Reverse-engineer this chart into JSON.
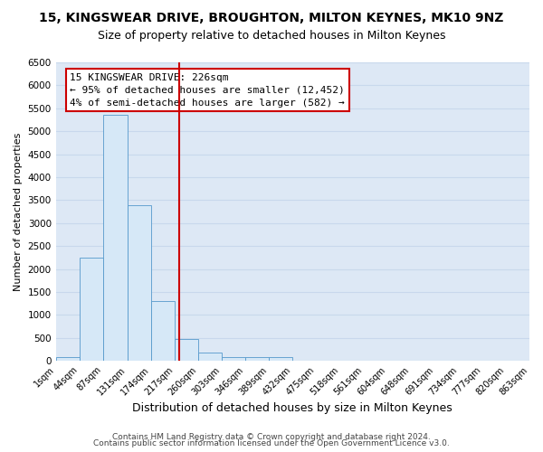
{
  "title": "15, KINGSWEAR DRIVE, BROUGHTON, MILTON KEYNES, MK10 9NZ",
  "subtitle": "Size of property relative to detached houses in Milton Keynes",
  "xlabel": "Distribution of detached houses by size in Milton Keynes",
  "ylabel": "Number of detached properties",
  "bin_edges": [
    1,
    44,
    87,
    131,
    174,
    217,
    260,
    303,
    346,
    389,
    432,
    475,
    518,
    561,
    604,
    648,
    691,
    734,
    777,
    820,
    863
  ],
  "bin_heights": [
    75,
    2250,
    5350,
    3380,
    1300,
    480,
    175,
    75,
    75,
    75,
    0,
    0,
    0,
    0,
    0,
    0,
    0,
    0,
    0,
    0
  ],
  "bar_facecolor": "#d6e8f7",
  "bar_edgecolor": "#5599cc",
  "vline_x": 226,
  "vline_color": "#cc0000",
  "annotation_text": "15 KINGSWEAR DRIVE: 226sqm\n← 95% of detached houses are smaller (12,452)\n4% of semi-detached houses are larger (582) →",
  "annotation_fontsize": 8.0,
  "annotation_box_facecolor": "white",
  "annotation_border_color": "#cc0000",
  "tick_labels": [
    "1sqm",
    "44sqm",
    "87sqm",
    "131sqm",
    "174sqm",
    "217sqm",
    "260sqm",
    "303sqm",
    "346sqm",
    "389sqm",
    "432sqm",
    "475sqm",
    "518sqm",
    "561sqm",
    "604sqm",
    "648sqm",
    "691sqm",
    "734sqm",
    "777sqm",
    "820sqm",
    "863sqm"
  ],
  "ylim": [
    0,
    6500
  ],
  "yticks": [
    0,
    500,
    1000,
    1500,
    2000,
    2500,
    3000,
    3500,
    4000,
    4500,
    5000,
    5500,
    6000,
    6500
  ],
  "grid_color": "#c8d8ec",
  "plot_bg_color": "#dde8f5",
  "fig_bg_color": "#ffffff",
  "footer_lines": [
    "Contains HM Land Registry data © Crown copyright and database right 2024.",
    "Contains public sector information licensed under the Open Government Licence v3.0."
  ],
  "title_fontsize": 10,
  "subtitle_fontsize": 9,
  "xlabel_fontsize": 9,
  "ylabel_fontsize": 8,
  "tick_fontsize": 7,
  "footer_fontsize": 6.5
}
